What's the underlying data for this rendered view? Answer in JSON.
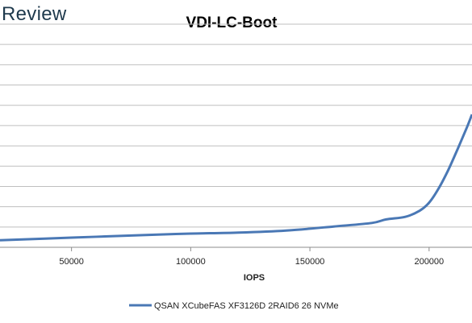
{
  "brand": {
    "logo_text": "Review"
  },
  "chart_data": {
    "type": "line",
    "title": "VDI-LC-Boot",
    "xlabel": "IOPS",
    "ylabel": "",
    "xlim": [
      20000,
      218000
    ],
    "ylim": [
      0,
      22
    ],
    "x_ticks": [
      50000,
      100000,
      150000,
      200000
    ],
    "y_gridlines": [
      2,
      4,
      6,
      8,
      10,
      12,
      14,
      16,
      18,
      20,
      22
    ],
    "y_tick_labels_visible": false,
    "grid": true,
    "legend_position": "bottom",
    "series": [
      {
        "name": "QSAN XCubeFAS XF3126D 2RAID6 26 NVMe",
        "color": "#4a78b5",
        "x": [
          20000,
          50000,
          80000,
          100000,
          120000,
          140000,
          160000,
          176000,
          182000,
          190000,
          196000,
          200000,
          204000,
          208000,
          212000,
          216000,
          218000
        ],
        "y": [
          0.7,
          0.95,
          1.2,
          1.35,
          1.45,
          1.65,
          2.05,
          2.4,
          2.75,
          3.0,
          3.6,
          4.4,
          5.8,
          7.6,
          9.7,
          11.9,
          13.1
        ]
      }
    ]
  }
}
